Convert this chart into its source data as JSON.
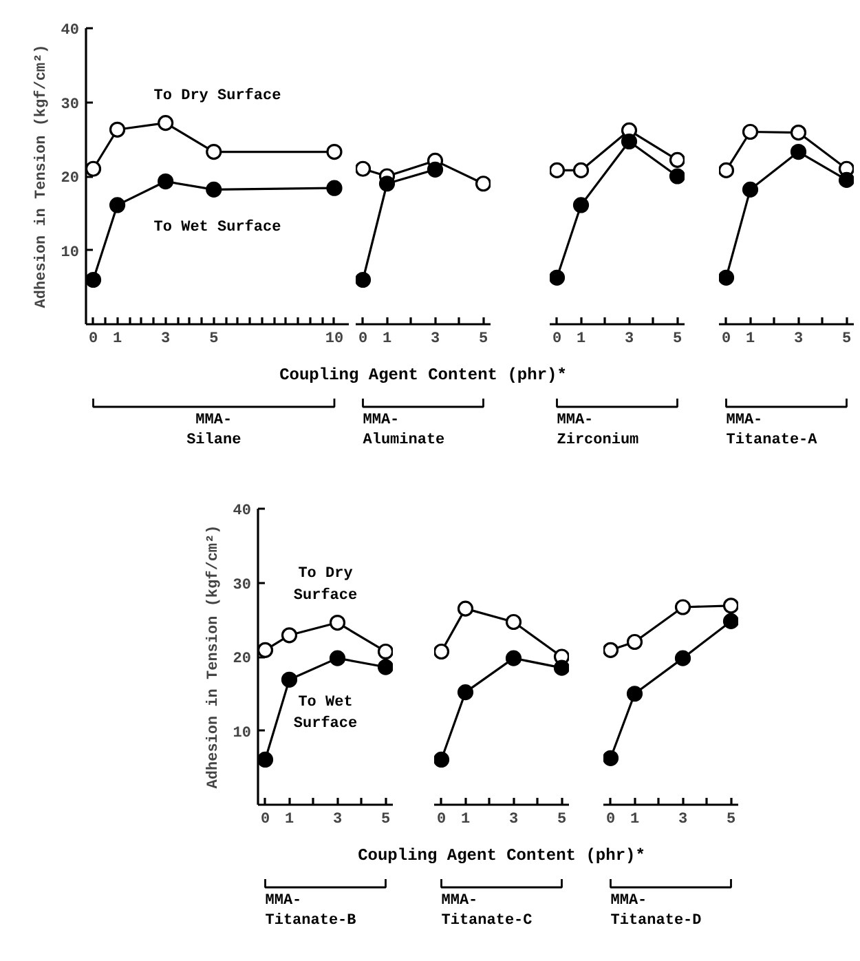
{
  "chart_data": [
    {
      "type": "line",
      "title": "MMA-\nSilane",
      "ylabel": "Adhesion in Tension (kgf/cm²)",
      "x": [
        0,
        1,
        3,
        5,
        10
      ],
      "marker": "circle",
      "xlim": [
        -0.3,
        10.6
      ],
      "ylim": [
        0,
        40
      ],
      "yticks": [
        10,
        20,
        30,
        40
      ],
      "xticks": [
        0,
        {
          "value": 0.5,
          "label": null
        },
        1,
        {
          "value": 1.5,
          "label": null
        },
        {
          "value": 2,
          "label": null
        },
        {
          "value": 2.5,
          "label": null
        },
        3,
        {
          "value": 3.5,
          "label": null
        },
        {
          "value": 4,
          "label": null
        },
        {
          "value": 4.5,
          "label": null
        },
        5,
        {
          "value": 5.5,
          "label": null
        },
        {
          "value": 6,
          "label": null
        },
        {
          "value": 6.5,
          "label": null
        },
        {
          "value": 7,
          "label": null
        },
        {
          "value": 7.5,
          "label": null
        },
        {
          "value": 8,
          "label": null
        },
        {
          "value": 8.5,
          "label": null
        },
        {
          "value": 9,
          "label": null
        },
        {
          "value": 9.5,
          "label": null
        },
        10
      ],
      "series": [
        {
          "name": "To Dry Surface",
          "color": "#ffffff",
          "values": [
            21,
            26.3,
            27.2,
            23.3,
            23.3
          ]
        },
        {
          "name": "To Wet Surface",
          "color": "#000000",
          "values": [
            6,
            16.1,
            19.3,
            18.2,
            18.4
          ]
        }
      ]
    },
    {
      "type": "line",
      "title": "MMA-\nAluminate",
      "xlabel": "Coupling Agent Content (phr)*",
      "x": [
        0,
        1,
        3,
        5
      ],
      "marker": "circle",
      "xlim": [
        -0.3,
        5.3
      ],
      "ylim": [
        0,
        40
      ],
      "tick_labels": "x",
      "xticks": [
        0,
        1,
        {
          "value": 2,
          "label": null
        },
        3,
        {
          "value": 4,
          "label": null
        },
        5
      ],
      "series": [
        {
          "color": "#ffffff",
          "values": [
            21,
            20,
            22.1,
            19
          ]
        },
        {
          "color": "#000000",
          "values": [
            6,
            19,
            20.9,
            null
          ]
        }
      ]
    },
    {
      "type": "line",
      "title": "MMA-\nZirconium",
      "x": [
        0,
        1,
        3,
        5
      ],
      "marker": "circle",
      "xlim": [
        -0.3,
        5.3
      ],
      "ylim": [
        0,
        40
      ],
      "tick_labels": "x",
      "xticks": [
        0,
        1,
        {
          "value": 2,
          "label": null
        },
        3,
        {
          "value": 4,
          "label": null
        },
        5
      ],
      "series": [
        {
          "color": "#ffffff",
          "values": [
            20.8,
            20.8,
            26.2,
            22.2
          ]
        },
        {
          "color": "#000000",
          "values": [
            6.3,
            16.1,
            24.7,
            20
          ]
        }
      ]
    },
    {
      "type": "line",
      "title": "MMA-\nTitanate-A",
      "x": [
        0,
        1,
        3,
        5
      ],
      "marker": "circle",
      "xlim": [
        -0.3,
        5.3
      ],
      "ylim": [
        0,
        40
      ],
      "tick_labels": "x",
      "xticks": [
        0,
        1,
        {
          "value": 2,
          "label": null
        },
        3,
        {
          "value": 4,
          "label": null
        },
        5
      ],
      "series": [
        {
          "color": "#ffffff",
          "values": [
            20.8,
            26,
            25.9,
            21
          ]
        },
        {
          "color": "#000000",
          "values": [
            6.3,
            18.2,
            23.3,
            19.5
          ]
        }
      ]
    },
    {
      "type": "line",
      "title": "MMA-\nTitanate-B",
      "ylabel": "Adhesion in Tension (kgf/cm²)",
      "x": [
        0,
        1,
        3,
        5
      ],
      "marker": "circle",
      "xlim": [
        -0.3,
        5.3
      ],
      "ylim": [
        0,
        40
      ],
      "yticks": [
        10,
        20,
        30,
        40
      ],
      "xticks": [
        0,
        1,
        {
          "value": 2,
          "label": null
        },
        3,
        {
          "value": 4,
          "label": null
        },
        5
      ],
      "series": [
        {
          "name": "To Dry Surface",
          "color": "#ffffff",
          "values": [
            20.9,
            22.9,
            24.6,
            20.7
          ]
        },
        {
          "name": "To Wet Surface",
          "color": "#000000",
          "values": [
            6.1,
            16.9,
            19.8,
            18.6
          ]
        }
      ]
    },
    {
      "type": "line",
      "title": "MMA-\nTitanate-C",
      "xlabel": "Coupling Agent Content (phr)*",
      "x": [
        0,
        1,
        3,
        5
      ],
      "marker": "circle",
      "xlim": [
        -0.3,
        5.3
      ],
      "ylim": [
        0,
        40
      ],
      "tick_labels": "x",
      "xticks": [
        0,
        1,
        {
          "value": 2,
          "label": null
        },
        3,
        {
          "value": 4,
          "label": null
        },
        5
      ],
      "series": [
        {
          "color": "#ffffff",
          "values": [
            20.7,
            26.5,
            24.7,
            20
          ]
        },
        {
          "color": "#000000",
          "values": [
            6.1,
            15.2,
            19.8,
            18.5
          ]
        }
      ]
    },
    {
      "type": "line",
      "title": "MMA-\nTitanate-D",
      "x": [
        0,
        1,
        3,
        5
      ],
      "marker": "circle",
      "xlim": [
        -0.3,
        5.3
      ],
      "ylim": [
        0,
        40
      ],
      "tick_labels": "x",
      "xticks": [
        0,
        1,
        {
          "value": 2,
          "label": null
        },
        3,
        {
          "value": 4,
          "label": null
        },
        5
      ],
      "series": [
        {
          "color": "#ffffff",
          "values": [
            20.9,
            22,
            26.7,
            26.9
          ]
        },
        {
          "color": "#000000",
          "values": [
            6.3,
            15,
            19.8,
            24.8
          ]
        }
      ]
    }
  ]
}
